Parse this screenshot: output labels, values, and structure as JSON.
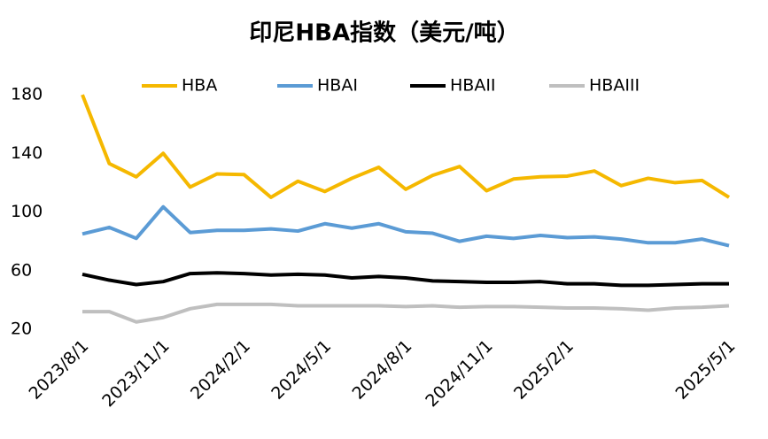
{
  "chart_data": {
    "type": "line",
    "title": "印尼HBA指数（美元/吨）",
    "categories": [
      "2023/8/1",
      null,
      null,
      "2023/11/1",
      null,
      null,
      "2024/2/1",
      null,
      null,
      "2024/5/1",
      null,
      null,
      "2024/8/1",
      null,
      null,
      "2024/11/1",
      null,
      null,
      "2025/2/1",
      null,
      null,
      null,
      null,
      null,
      "2025/5/1"
    ],
    "series": [
      {
        "name": "HBA",
        "color": "#f5b800",
        "values": [
          180,
          133,
          124,
          140,
          117,
          126,
          125.5,
          110,
          121,
          114,
          123,
          130.5,
          115.5,
          125,
          131,
          114.5,
          122.5,
          124,
          124.5,
          128,
          118,
          123,
          120,
          121.5,
          110
        ]
      },
      {
        "name": "HBAI",
        "color": "#5b9bd5",
        "values": [
          85,
          89.5,
          82,
          103.5,
          86,
          87.5,
          87.5,
          88.5,
          87,
          92,
          89,
          92,
          86.5,
          85.5,
          80,
          83.5,
          82,
          84,
          82.5,
          83,
          81.5,
          79,
          79,
          81.5,
          77
        ]
      },
      {
        "name": "HBAII",
        "color": "#000000",
        "values": [
          57.5,
          53.5,
          50.5,
          52.5,
          58,
          58.5,
          58,
          57,
          57.5,
          57,
          55,
          56,
          55,
          53,
          52.5,
          52,
          52,
          52.5,
          51,
          51,
          50,
          50,
          50.5,
          51,
          51
        ]
      },
      {
        "name": "HBAIII",
        "color": "#bfbfbf",
        "values": [
          32,
          32,
          25,
          28,
          34,
          37,
          37,
          37,
          36,
          36,
          36,
          36,
          35.5,
          36,
          35,
          35.5,
          35.5,
          35,
          34.5,
          34.5,
          34,
          33,
          34.5,
          35,
          36
        ]
      }
    ],
    "ylim": [
      20,
      190
    ],
    "yticks": [
      20,
      60,
      100,
      140,
      180
    ],
    "grid": false,
    "legend": "top"
  }
}
